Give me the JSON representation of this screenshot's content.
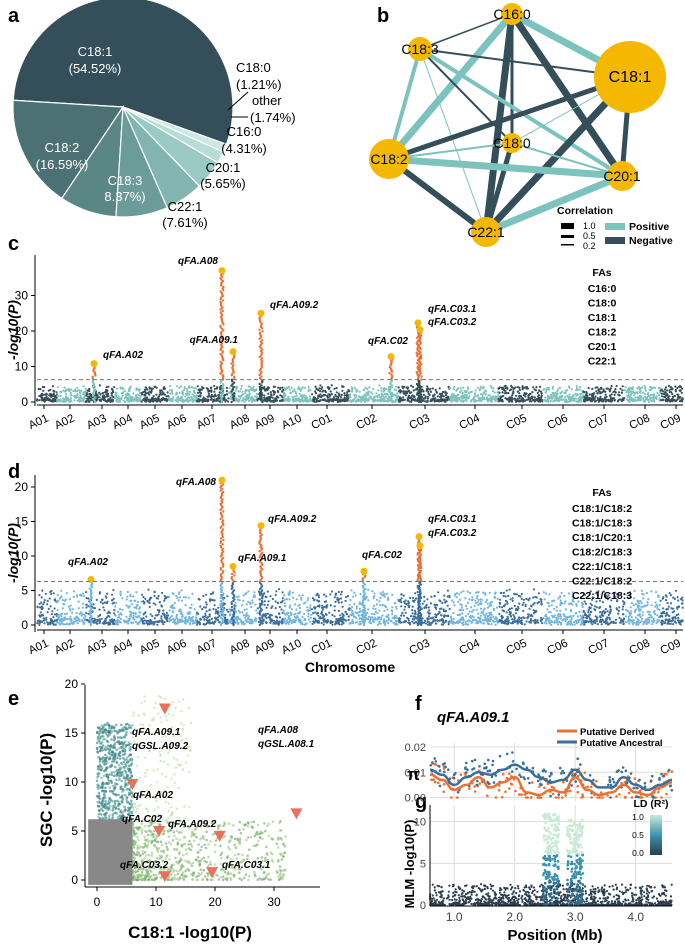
{
  "figure": {
    "panel_labels": [
      "a",
      "b",
      "c",
      "d",
      "e",
      "f",
      "g"
    ],
    "colors": {
      "dark": "#344e5a",
      "teal": "#7cc3be",
      "orange": "#ec7032",
      "gold": "#f5b800",
      "lightblue": "#72b6e0",
      "blue": "#3b6e9b",
      "gray": "#888888",
      "green": "#9bc97a",
      "red": "#e9705c",
      "pos": "#7cc3be",
      "neg": "#344e5a"
    },
    "chart_data": [
      {
        "panel": "a",
        "type": "pie",
        "slices": [
          {
            "name": "C18:1",
            "line1": "C18:1",
            "line2": "(54.52%)",
            "value": 54.52,
            "color": "#344e5a"
          },
          {
            "name": "C18:2",
            "line1": "C18:2",
            "line2": "(16.59%)",
            "value": 16.59,
            "color": "#4c7175"
          },
          {
            "name": "C18:3",
            "line1": "C18:3",
            "line2": "8.37%)",
            "value": 8.37,
            "color": "#5a8686"
          },
          {
            "name": "C22:1",
            "line1": "C22:1",
            "line2": "(7.61%)",
            "value": 7.61,
            "color": "#6b9c9a"
          },
          {
            "name": "C20:1",
            "line1": "C20:1",
            "line2": "(5.65%)",
            "value": 5.65,
            "color": "#82b5b0"
          },
          {
            "name": "C16:0",
            "line1": "C16:0",
            "line2": "(4.31%)",
            "value": 4.31,
            "color": "#9acac3"
          },
          {
            "name": "other",
            "line1": "other",
            "line2": "(1.74%)",
            "value": 1.74,
            "color": "#b8ddd7"
          },
          {
            "name": "C18:0",
            "line1": "C18:0",
            "line2": "(1.21%)",
            "value": 1.21,
            "color": "#cde8e3"
          }
        ]
      },
      {
        "panel": "b",
        "type": "network",
        "nodes": [
          "C16:0",
          "C18:3",
          "C18:1",
          "C18:0",
          "C18:2",
          "C20:1",
          "C22:1"
        ],
        "legend": {
          "title": "Correlation",
          "sizes": [
            "1.0",
            "0.5",
            "0.2"
          ],
          "entries": [
            "Positive",
            "Negative"
          ]
        }
      },
      {
        "panel": "c",
        "type": "scatter",
        "subtype": "manhattan",
        "ylabel": "-log10(P)",
        "ylim": [
          0,
          38
        ],
        "yticks": [
          "0",
          "10",
          "20",
          "30"
        ],
        "threshold": 6.3,
        "chromosomes": [
          "A01",
          "A02",
          "A03",
          "A04",
          "A05",
          "A06",
          "A07",
          "A08",
          "A09",
          "A10",
          "C01",
          "C02",
          "C03",
          "C04",
          "C05",
          "C06",
          "C07",
          "C08",
          "C09"
        ],
        "peaks": [
          {
            "label": "qFA.A02",
            "chr": "A02",
            "value": 10.8
          },
          {
            "label": "qFA.A08",
            "chr": "A08",
            "value": 37
          },
          {
            "label": "qFA.A09.1",
            "chr": "A09",
            "value": 14.2
          },
          {
            "label": "qFA.A09.2",
            "chr": "A09",
            "value": 25
          },
          {
            "label": "qFA.C02",
            "chr": "C02",
            "value": 12.8
          },
          {
            "label": "qFA.C03.1",
            "chr": "C03",
            "value": 22.3
          },
          {
            "label": "qFA.C03.2",
            "chr": "C03",
            "value": 20.4
          }
        ],
        "legend_title": "FAs",
        "legend": [
          "C16:0",
          "C18:0",
          "C18:1",
          "C18:2",
          "C20:1",
          "C22:1"
        ]
      },
      {
        "panel": "d",
        "type": "scatter",
        "subtype": "manhattan",
        "ylabel": "-log10(P)",
        "xlabel": "Chromosome",
        "ylim": [
          0,
          22
        ],
        "yticks": [
          "0",
          "5",
          "10",
          "15",
          "20"
        ],
        "threshold": 6.3,
        "chromosomes": [
          "A01",
          "A02",
          "A03",
          "A04",
          "A05",
          "A06",
          "A07",
          "A08",
          "A09",
          "A10",
          "C01",
          "C02",
          "C03",
          "C04",
          "C05",
          "C06",
          "C07",
          "C08",
          "C09"
        ],
        "peaks": [
          {
            "label": "qFA.A02",
            "chr": "A02",
            "value": 6.6
          },
          {
            "label": "qFA.A08",
            "chr": "A08",
            "value": 21
          },
          {
            "label": "qFA.A09.1",
            "chr": "A09",
            "value": 8.5
          },
          {
            "label": "qFA.A09.2",
            "chr": "A09",
            "value": 14.4
          },
          {
            "label": "qFA.C02",
            "chr": "C02",
            "value": 7.8
          },
          {
            "label": "qFA.C03.1",
            "chr": "C03",
            "value": 12.8
          },
          {
            "label": "qFA.C03.2",
            "chr": "C03",
            "value": 11.5
          }
        ],
        "legend_title": "FAs",
        "legend": [
          "C18:1/C18:2",
          "C18:1/C18:3",
          "C18:1/C20:1",
          "C18:2/C18:3",
          "C22:1/C18:1",
          "C22:1/C18:2",
          "C22:1/C18:3"
        ]
      },
      {
        "panel": "e",
        "type": "scatter",
        "xlabel": "C18:1 -log10(P)",
        "ylabel": "SGC -log10(P)",
        "xlim": [
          -2,
          37
        ],
        "ylim": [
          -1,
          20
        ],
        "xticks": [
          "0",
          "10",
          "20",
          "30"
        ],
        "yticks": [
          "0",
          "5",
          "10",
          "15",
          "20"
        ],
        "markers": [
          {
            "label": "qFA.A09.1\nqGSL.A09.2",
            "x": 11.5,
            "y": 17.5
          },
          {
            "label": "qFA.A02",
            "x": 6.0,
            "y": 9.8
          },
          {
            "label": "qFA.C02",
            "x": 10.5,
            "y": 5.0
          },
          {
            "label": "qFA.A09.2",
            "x": 20.8,
            "y": 4.5
          },
          {
            "label": "qFA.C03.2",
            "x": 11.5,
            "y": 0.4
          },
          {
            "label": "qFA.C03.1",
            "x": 19.5,
            "y": 0.8
          },
          {
            "label": "qFA.A08\nqGSL.A08.1",
            "x": 33.8,
            "y": 6.8
          }
        ]
      },
      {
        "panel": "f",
        "type": "line",
        "title": "qFA.A09.1",
        "ylabel": "π",
        "xlim": [
          0.6,
          4.6
        ],
        "ylim": [
          -0.001,
          0.022
        ],
        "yticks": [
          "0.00",
          "0.01",
          "0.02"
        ],
        "series": [
          {
            "name": "Putative Derived",
            "color": "#ec7032",
            "x": [
              0.6,
              0.8,
              1.0,
              1.2,
              1.4,
              1.6,
              1.8,
              2.0,
              2.2,
              2.4,
              2.6,
              2.8,
              3.0,
              3.2,
              3.4,
              3.6,
              3.8,
              4.0,
              4.2,
              4.4,
              4.6
            ],
            "values": [
              0.009,
              0.007,
              0.003,
              0.005,
              0.008,
              0.004,
              0.006,
              0.008,
              0.002,
              0.001,
              0.003,
              0.002,
              0.008,
              0.003,
              0.001,
              0.002,
              0.005,
              0.002,
              0.001,
              0.004,
              0.006
            ]
          },
          {
            "name": "Putative Ancestral",
            "color": "#3b6e9b",
            "x": [
              0.6,
              0.8,
              1.0,
              1.2,
              1.4,
              1.6,
              1.8,
              2.0,
              2.2,
              2.4,
              2.6,
              2.8,
              3.0,
              3.2,
              3.4,
              3.6,
              3.8,
              4.0,
              4.2,
              4.4,
              4.6
            ],
            "values": [
              0.011,
              0.009,
              0.005,
              0.008,
              0.01,
              0.009,
              0.011,
              0.013,
              0.011,
              0.008,
              0.006,
              0.007,
              0.011,
              0.007,
              0.004,
              0.004,
              0.008,
              0.005,
              0.003,
              0.005,
              0.007
            ]
          }
        ]
      },
      {
        "panel": "g",
        "type": "scatter",
        "xlabel": "Position (Mb)",
        "ylabel": "MLM -log10(P)",
        "xlim": [
          0.6,
          4.6
        ],
        "ylim": [
          0,
          12
        ],
        "xticks": [
          "1.0",
          "2.0",
          "3.0",
          "4.0"
        ],
        "yticks": [
          "0",
          "5",
          "10"
        ],
        "legend_title": "LD (R²)",
        "legend_ticks": [
          "1.0",
          "0.5",
          "0.0"
        ]
      }
    ]
  }
}
